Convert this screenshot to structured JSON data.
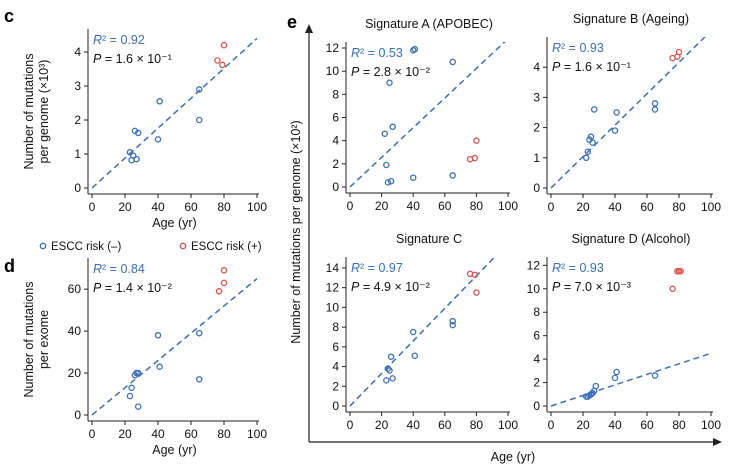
{
  "colors": {
    "blue": "#3a6fb7",
    "red": "#d9534f",
    "axis": "#222222",
    "text": "#111111"
  },
  "legend": {
    "blue_label": "ESCC risk (–)",
    "red_label": "ESCC risk (+)"
  },
  "panel_e": {
    "ylabel": "Number of mutations per genome (×10²)",
    "xlabel": "Age (yr)"
  },
  "chart_data": [
    {
      "id": "c",
      "panel_letter": "c",
      "type": "scatter",
      "title": "",
      "xlabel": "Age (yr)",
      "ylabel": [
        "Number of mutations",
        "per genome (×10³)"
      ],
      "xlim": [
        0,
        100
      ],
      "ylim": [
        0,
        4.5
      ],
      "xticks": [
        0,
        20,
        40,
        60,
        80,
        100
      ],
      "yticks": [
        0,
        1,
        2,
        3,
        4
      ],
      "r2_label": "R² = 0.92",
      "p_label": "P = 1.6 × 10⁻¹",
      "fit": [
        [
          0,
          0
        ],
        [
          100,
          4.4
        ]
      ],
      "series": [
        {
          "name": "ESCC risk (–)",
          "color": "blue",
          "points": [
            [
              23,
              1.05
            ],
            [
              24,
              0.82
            ],
            [
              25,
              0.95
            ],
            [
              26,
              1.68
            ],
            [
              27,
              0.85
            ],
            [
              28,
              1.62
            ],
            [
              40,
              1.43
            ],
            [
              41,
              2.55
            ],
            [
              65,
              2.0
            ],
            [
              65,
              2.9
            ]
          ]
        },
        {
          "name": "ESCC risk (+)",
          "color": "red",
          "points": [
            [
              76,
              3.75
            ],
            [
              79,
              3.62
            ],
            [
              80,
              4.2
            ]
          ]
        }
      ]
    },
    {
      "id": "d",
      "panel_letter": "d",
      "type": "scatter",
      "title": "",
      "xlabel": "Age (yr)",
      "ylabel": [
        "Number of mutations",
        "per exome"
      ],
      "xlim": [
        0,
        100
      ],
      "ylim": [
        0,
        72
      ],
      "xticks": [
        0,
        20,
        40,
        60,
        80,
        100
      ],
      "yticks": [
        0,
        20,
        40,
        60
      ],
      "r2_label": "R² = 0.84",
      "p_label": "P = 1.4 × 10⁻²",
      "fit": [
        [
          0,
          0
        ],
        [
          100,
          65
        ]
      ],
      "series": [
        {
          "name": "ESCC risk (–)",
          "color": "blue",
          "points": [
            [
              23,
              9
            ],
            [
              24,
              13
            ],
            [
              26,
              19
            ],
            [
              27,
              20
            ],
            [
              28,
              20
            ],
            [
              28,
              4
            ],
            [
              40,
              38
            ],
            [
              41,
              23
            ],
            [
              65,
              39
            ],
            [
              65,
              17
            ]
          ]
        },
        {
          "name": "ESCC risk (+)",
          "color": "red",
          "points": [
            [
              77,
              59
            ],
            [
              80,
              63
            ],
            [
              80,
              69
            ]
          ]
        }
      ]
    },
    {
      "id": "eA",
      "panel_letter": "",
      "type": "scatter",
      "title": "Signature A (APOBEC)",
      "xlabel": "",
      "ylabel": "",
      "xlim": [
        0,
        100
      ],
      "ylim": [
        0,
        12
      ],
      "xticks": [
        0,
        20,
        40,
        60,
        80,
        100
      ],
      "yticks": [
        0,
        2,
        4,
        6,
        8,
        10,
        12
      ],
      "r2_label": "R² = 0.53",
      "p_label": "P = 2.8 × 10⁻²",
      "fit": [
        [
          0,
          0
        ],
        [
          100,
          12.8
        ]
      ],
      "series": [
        {
          "name": "ESCC risk (–)",
          "color": "blue",
          "points": [
            [
              22,
              4.6
            ],
            [
              23,
              1.9
            ],
            [
              24,
              0.4
            ],
            [
              25,
              9.0
            ],
            [
              26,
              0.5
            ],
            [
              27,
              5.2
            ],
            [
              40,
              0.8
            ],
            [
              40,
              11.8
            ],
            [
              41,
              11.9
            ],
            [
              65,
              10.8
            ],
            [
              65,
              1.0
            ]
          ]
        },
        {
          "name": "ESCC risk (+)",
          "color": "red",
          "points": [
            [
              76,
              2.4
            ],
            [
              79,
              2.5
            ],
            [
              80,
              4.0
            ]
          ]
        }
      ]
    },
    {
      "id": "eB",
      "panel_letter": "",
      "type": "scatter",
      "title": "Signature B (Ageing)",
      "xlabel": "",
      "ylabel": "",
      "xlim": [
        0,
        100
      ],
      "ylim": [
        0,
        4.8
      ],
      "xticks": [
        0,
        20,
        40,
        60,
        80,
        100
      ],
      "yticks": [
        0,
        1,
        2,
        3,
        4
      ],
      "r2_label": "R² = 0.93",
      "p_label": "P = 1.6 × 10⁻¹",
      "fit": [
        [
          0,
          0
        ],
        [
          100,
          5.2
        ]
      ],
      "series": [
        {
          "name": "ESCC risk (–)",
          "color": "blue",
          "points": [
            [
              22,
              1.0
            ],
            [
              23,
              1.2
            ],
            [
              24,
              1.6
            ],
            [
              25,
              1.7
            ],
            [
              26,
              1.5
            ],
            [
              27,
              2.6
            ],
            [
              40,
              1.9
            ],
            [
              41,
              2.5
            ],
            [
              65,
              2.6
            ],
            [
              65,
              2.8
            ]
          ]
        },
        {
          "name": "ESCC risk (+)",
          "color": "red",
          "points": [
            [
              76,
              4.3
            ],
            [
              79,
              4.35
            ],
            [
              80,
              4.5
            ]
          ]
        }
      ]
    },
    {
      "id": "eC",
      "panel_letter": "",
      "type": "scatter",
      "title": "Signature C",
      "xlabel": "",
      "ylabel": "",
      "xlim": [
        0,
        100
      ],
      "ylim": [
        0,
        14.5
      ],
      "xticks": [
        0,
        20,
        40,
        60,
        80,
        100
      ],
      "yticks": [
        0,
        2,
        4,
        6,
        8,
        10,
        12,
        14
      ],
      "r2_label": "R² = 0.97",
      "p_label": "P = 4.9 × 10⁻²",
      "fit": [
        [
          0,
          0
        ],
        [
          100,
          16.5
        ]
      ],
      "series": [
        {
          "name": "ESCC risk (–)",
          "color": "blue",
          "points": [
            [
              23,
              2.6
            ],
            [
              24,
              3.8
            ],
            [
              25,
              3.6
            ],
            [
              26,
              5.0
            ],
            [
              27,
              2.8
            ],
            [
              40,
              7.5
            ],
            [
              41,
              5.1
            ],
            [
              65,
              8.2
            ],
            [
              65,
              8.6
            ]
          ]
        },
        {
          "name": "ESCC risk (+)",
          "color": "red",
          "points": [
            [
              76,
              13.4
            ],
            [
              79,
              13.3
            ],
            [
              80,
              11.5
            ]
          ]
        }
      ]
    },
    {
      "id": "eD",
      "panel_letter": "",
      "type": "scatter",
      "title": "Signature D (Alcohol)",
      "xlabel": "",
      "ylabel": "",
      "xlim": [
        0,
        100
      ],
      "ylim": [
        0,
        12.2
      ],
      "xticks": [
        0,
        20,
        40,
        60,
        80,
        100
      ],
      "yticks": [
        0,
        2,
        4,
        6,
        8,
        10,
        12
      ],
      "r2_label": "R² = 0.93",
      "p_label": "P = 7.0 × 10⁻³",
      "fit": [
        [
          0,
          0
        ],
        [
          100,
          4.5
        ]
      ],
      "series": [
        {
          "name": "ESCC risk (–)",
          "color": "blue",
          "points": [
            [
              22,
              0.8
            ],
            [
              23,
              0.8
            ],
            [
              24,
              0.9
            ],
            [
              25,
              1.0
            ],
            [
              26,
              1.1
            ],
            [
              27,
              1.3
            ],
            [
              28,
              1.7
            ],
            [
              40,
              2.4
            ],
            [
              41,
              2.9
            ],
            [
              65,
              2.6
            ]
          ]
        },
        {
          "name": "ESCC risk (+)",
          "color": "red",
          "points": [
            [
              76,
              10.0
            ],
            [
              79,
              11.5
            ],
            [
              80,
              11.5
            ],
            [
              81,
              11.5
            ]
          ]
        }
      ]
    }
  ]
}
